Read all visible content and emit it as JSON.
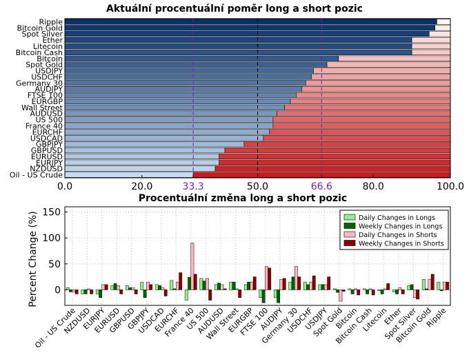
{
  "chart_data": [
    {
      "type": "bar",
      "orientation": "horizontal",
      "stacked": true,
      "title": "Aktuální procentuální poměr long a short pozic",
      "categories": [
        "Ripple",
        "Bitcoin Gold",
        "Spot Silver",
        "Ether",
        "Litecoin",
        "Bitcoin Cash",
        "Bitcoin",
        "Spot Gold",
        "USDJPY",
        "USDCHF",
        "Germany 30",
        "AUDJPY",
        "FTSE 100",
        "EURGBP",
        "Wall Street",
        "AUDUSD",
        "US 500",
        "France 40",
        "EURCHF",
        "USDCAD",
        "GBPJPY",
        "GBPUSD",
        "EURUSD",
        "EURJPY",
        "NZDUSD",
        "Oil - US Crude"
      ],
      "long_pct": [
        96.5,
        96,
        94.5,
        90,
        90,
        90,
        71,
        68,
        64.5,
        64,
        62.5,
        61.5,
        60,
        58.5,
        57,
        55,
        54,
        54,
        53,
        51.5,
        46.5,
        41.5,
        40,
        40,
        39,
        33.3
      ],
      "xlim": [
        0,
        100
      ],
      "xticks": [
        "0.0",
        "20.0",
        "33.3",
        "50.0",
        "66.6",
        "80.0",
        "100.0"
      ],
      "reference_lines": [
        33.3,
        50.0,
        66.6
      ],
      "colors": {
        "long_dark": "#08306b",
        "long_light": "#c6dbef",
        "short_dark": "#cb181d",
        "short_light": "#fff5f0",
        "ref_purple": "#7b1fa2"
      }
    },
    {
      "type": "bar",
      "title": "Procentuální změna long a short pozic",
      "ylabel": "Percent Change (%)",
      "ylim": [
        -30,
        160
      ],
      "yticks": [
        "0",
        "50",
        "100",
        "150"
      ],
      "grid": true,
      "legend_position": "top-right",
      "categories": [
        "Oil - US Crude",
        "NZDUSD",
        "EURJPY",
        "EURUSD",
        "GBPUSD",
        "GBPJPY",
        "USDCAD",
        "EURCHF",
        "France 40",
        "US 500",
        "AUDUSD",
        "Wall Street",
        "EURGBP",
        "FTSE 100",
        "AUDJPY",
        "Germany 30",
        "USDCHF",
        "USDJPY",
        "Spot Gold",
        "Bitcoin",
        "Bitcoin Cash",
        "Litecoin",
        "Ether",
        "Spot Silver",
        "Bitcoin Gold",
        "Ripple"
      ],
      "series": [
        {
          "name": "Daily Changes in Longs",
          "color": "#90ee90",
          "values": [
            4,
            -8,
            -8,
            8,
            8,
            15,
            10,
            18,
            -20,
            22,
            10,
            15,
            10,
            -15,
            -15,
            15,
            15,
            10,
            2,
            2,
            2,
            -2,
            -4,
            8,
            20,
            15
          ]
        },
        {
          "name": "Weekly Changes in Longs",
          "color": "#006400",
          "values": [
            -4,
            -8,
            -15,
            12,
            4,
            -15,
            8,
            2,
            24,
            17,
            13,
            15,
            15,
            -25,
            -25,
            25,
            10,
            10,
            -5,
            -8,
            -8,
            -8,
            -8,
            10,
            2,
            -2
          ]
        },
        {
          "name": "Daily Changes in Shorts",
          "color": "#ffb6c1",
          "values": [
            -4,
            2,
            10,
            8,
            4,
            15,
            4,
            15,
            90,
            22,
            10,
            2,
            15,
            45,
            20,
            45,
            15,
            10,
            -22,
            2,
            2,
            2,
            4,
            -15,
            20,
            15
          ]
        },
        {
          "name": "Weekly Changes in Shorts",
          "color": "#8b0000",
          "values": [
            -8,
            -8,
            10,
            -8,
            -8,
            10,
            -12,
            33,
            30,
            -20,
            2,
            -15,
            25,
            42,
            22,
            25,
            27,
            25,
            -3,
            -10,
            -10,
            12,
            -8,
            -18,
            30,
            15
          ]
        }
      ]
    }
  ]
}
